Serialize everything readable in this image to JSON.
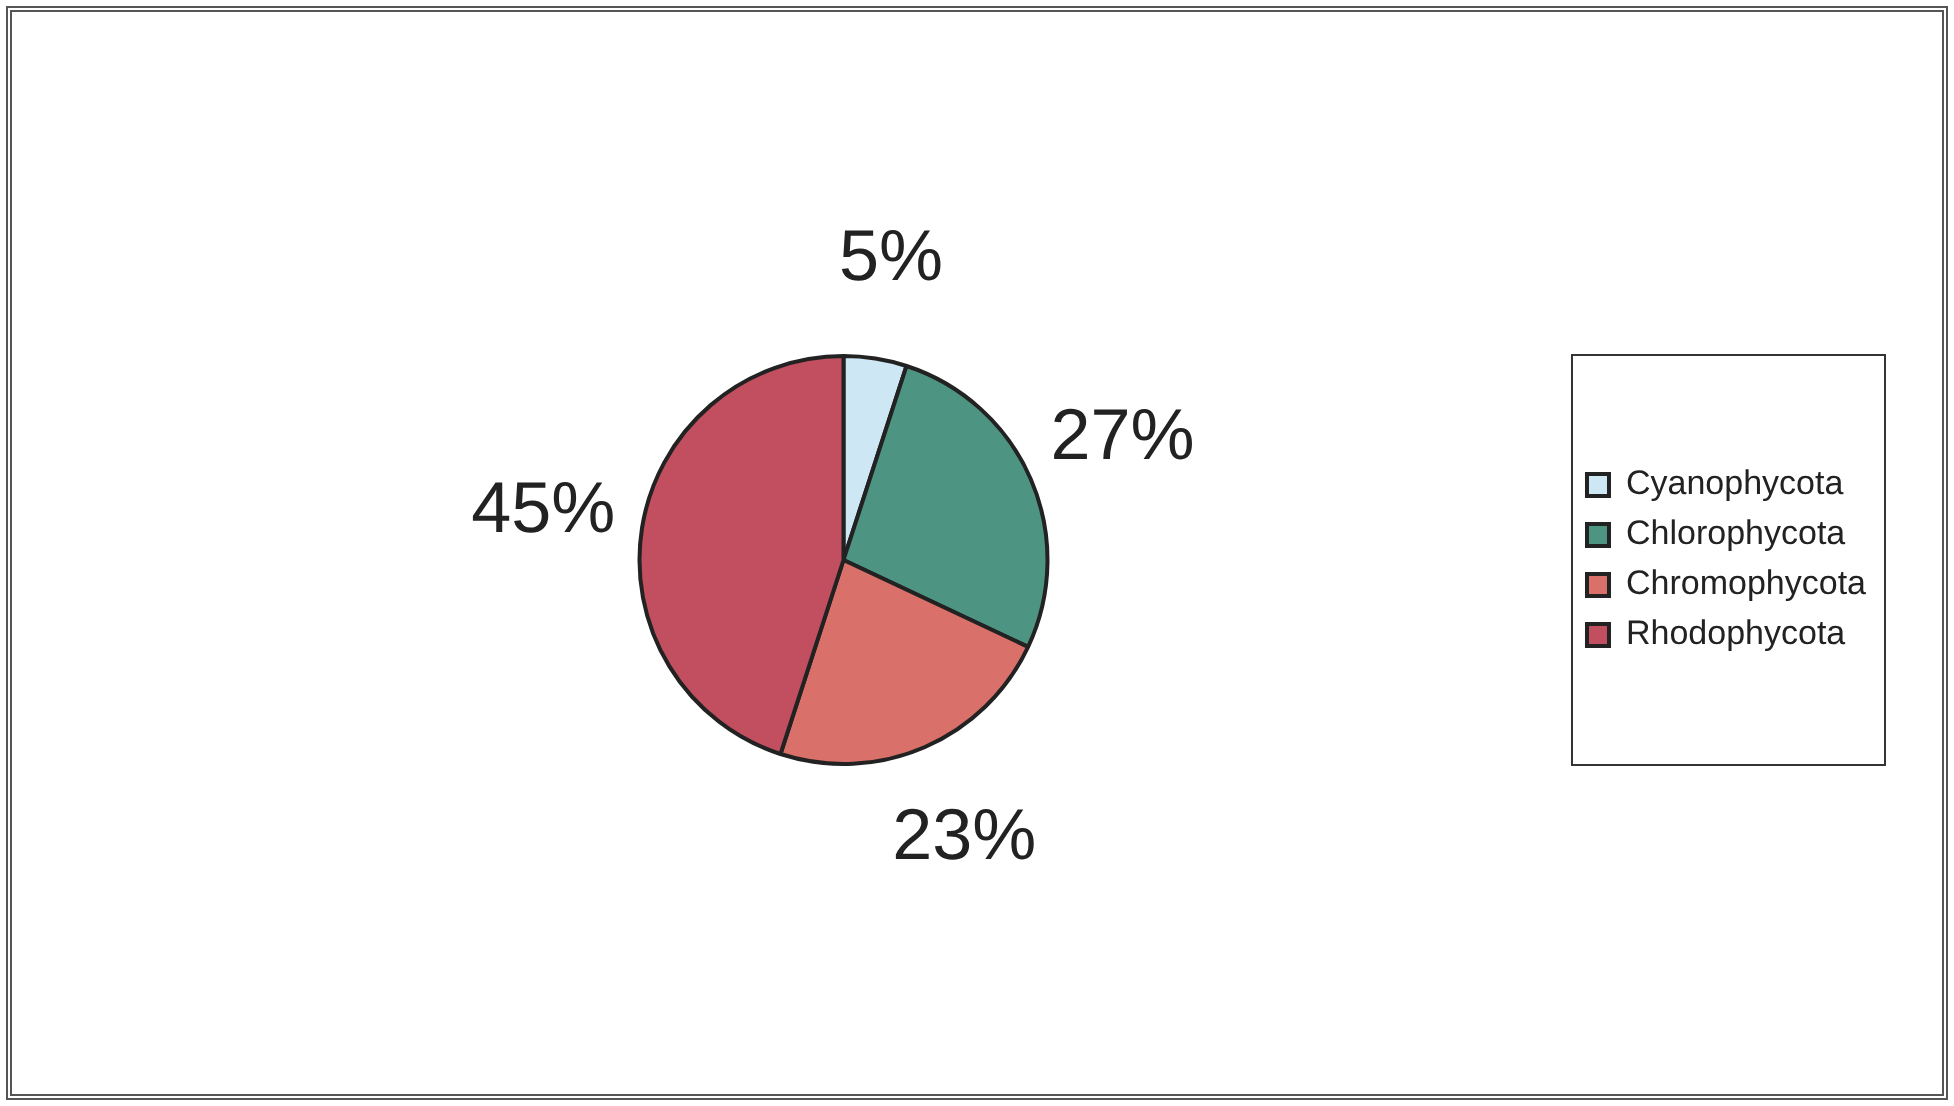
{
  "chart_data": {
    "type": "pie",
    "categories": [
      "Cyanophycota",
      "Chlorophycota",
      "Chromophycota",
      "Rhodophycota"
    ],
    "values": [
      5,
      27,
      23,
      45
    ],
    "colors": [
      "#cde8f4",
      "#4e9482",
      "#d9716a",
      "#c24f60"
    ],
    "value_labels": [
      "5%",
      "27%",
      "23%",
      "45%"
    ],
    "legend": "right"
  }
}
